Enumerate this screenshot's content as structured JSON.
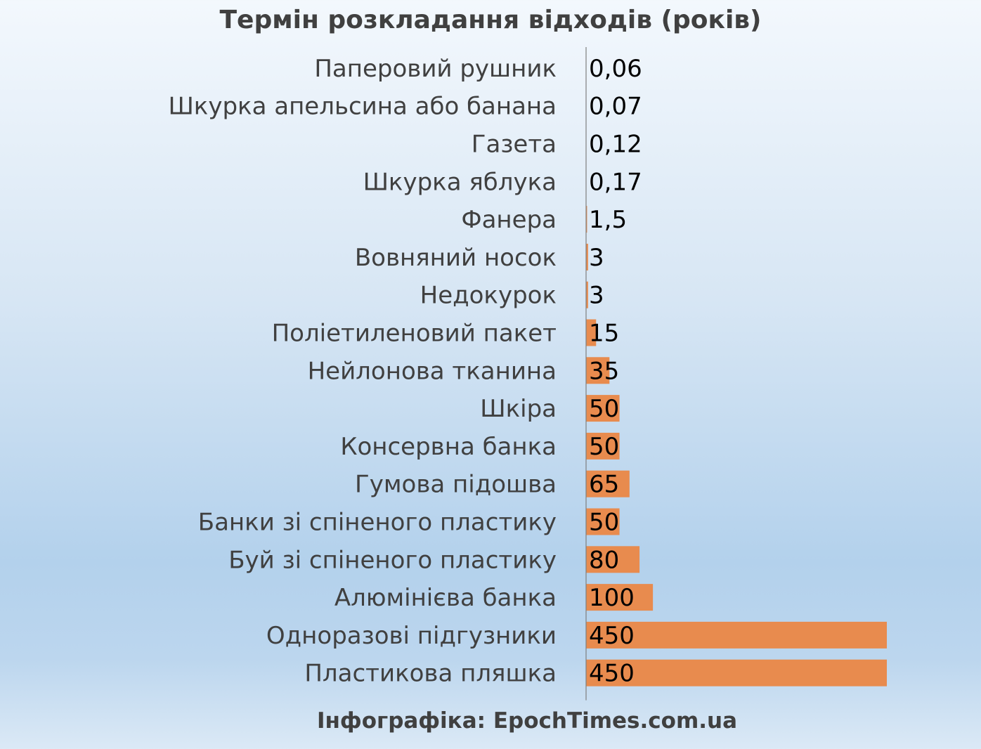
{
  "chart_data": {
    "type": "bar",
    "orientation": "horizontal",
    "title": "Термін розкладання відходів (років)",
    "categories": [
      "Паперовий рушник",
      "Шкурка апельсина або банана",
      "Газета",
      "Шкурка яблука",
      "Фанера",
      "Вовняний носок",
      "Недокурок",
      "Поліетиленовий пакет",
      "Нейлонова тканина",
      "Шкіра",
      "Консервна банка",
      "Гумова підошва",
      "Банки зі спіненого пластику",
      "Буй зі спіненого пластику",
      "Алюмінієва банка",
      "Одноразові підгузники",
      "Пластикова пляшка"
    ],
    "values": [
      0.06,
      0.07,
      0.12,
      0.17,
      1.5,
      3,
      3,
      15,
      35,
      50,
      50,
      65,
      50,
      80,
      100,
      450,
      450
    ],
    "value_labels": [
      "0,06",
      "0,07",
      "0,12",
      "0,17",
      "1,5",
      "3",
      "3",
      "15",
      "35",
      "50",
      "50",
      "65",
      "50",
      "80",
      "100",
      "450",
      "450"
    ],
    "xlim": [
      0,
      450
    ],
    "xlabel": "",
    "ylabel": "",
    "grid": false,
    "bar_color": "#e88b4e",
    "axis_color": "#7f7f7f"
  },
  "footer": "Інфографіка: EpochTimes.com.ua"
}
